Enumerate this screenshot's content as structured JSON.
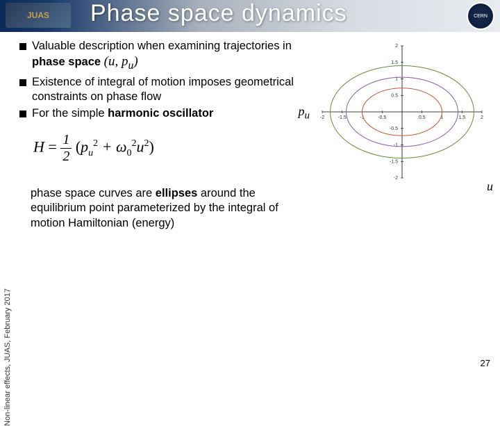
{
  "header": {
    "title": "Phase space dynamics",
    "logo_left": "JUAS",
    "logo_right": "CERN",
    "bg_gradient": [
      "#0a2a5a",
      "#e8ecf0"
    ]
  },
  "bullets": [
    {
      "pre": "Valuable description when examining trajectories in ",
      "bold": "phase space",
      "post": " ",
      "math": "(u, p_u)"
    },
    {
      "pre": "Existence of integral of motion imposes geometrical constraints on phase flow",
      "bold": "",
      "post": "",
      "math": ""
    },
    {
      "pre": "For the simple ",
      "bold": "harmonic oscillator",
      "post": "",
      "math": ""
    }
  ],
  "formula": {
    "lhs": "H",
    "eq": "=",
    "frac_n": "1",
    "frac_d": "2",
    "body": "(p_u^2 + ω_0^2 u^2)"
  },
  "paragraph": {
    "pre": "phase space curves are ",
    "b1": "ellipses",
    "mid": " around the equilibrium point parameterized by the integral of motion Hamiltonian (energy)"
  },
  "side_text": "Non-linear effects, JUAS, February 2017",
  "page_number": "27",
  "chart": {
    "type": "phase-space-ellipses",
    "xlim": [
      -2,
      2
    ],
    "ylim": [
      -2,
      2
    ],
    "xtick_step": 1,
    "ytick_step": 1,
    "xlabel": "u",
    "ylabel": "p_u",
    "axis_color": "#000000",
    "tick_labels_x": [
      "-2",
      "-1.5",
      "-1",
      "-0.5",
      "0.5",
      "1",
      "1.5",
      "2"
    ],
    "tick_labels_y": [
      "-2",
      "-1.5",
      "-1",
      "-0.5",
      "0.5",
      "1",
      "1.5",
      "2"
    ],
    "tick_fontsize": 7,
    "ellipses": [
      {
        "rx": 1.8,
        "ry": 1.4,
        "color": "#6a8a3a",
        "width": 1
      },
      {
        "rx": 1.4,
        "ry": 1.05,
        "color": "#8a5aaa",
        "width": 1
      },
      {
        "rx": 1.0,
        "ry": 0.72,
        "color": "#c05a3a",
        "width": 1
      }
    ],
    "background_color": "#ffffff"
  }
}
